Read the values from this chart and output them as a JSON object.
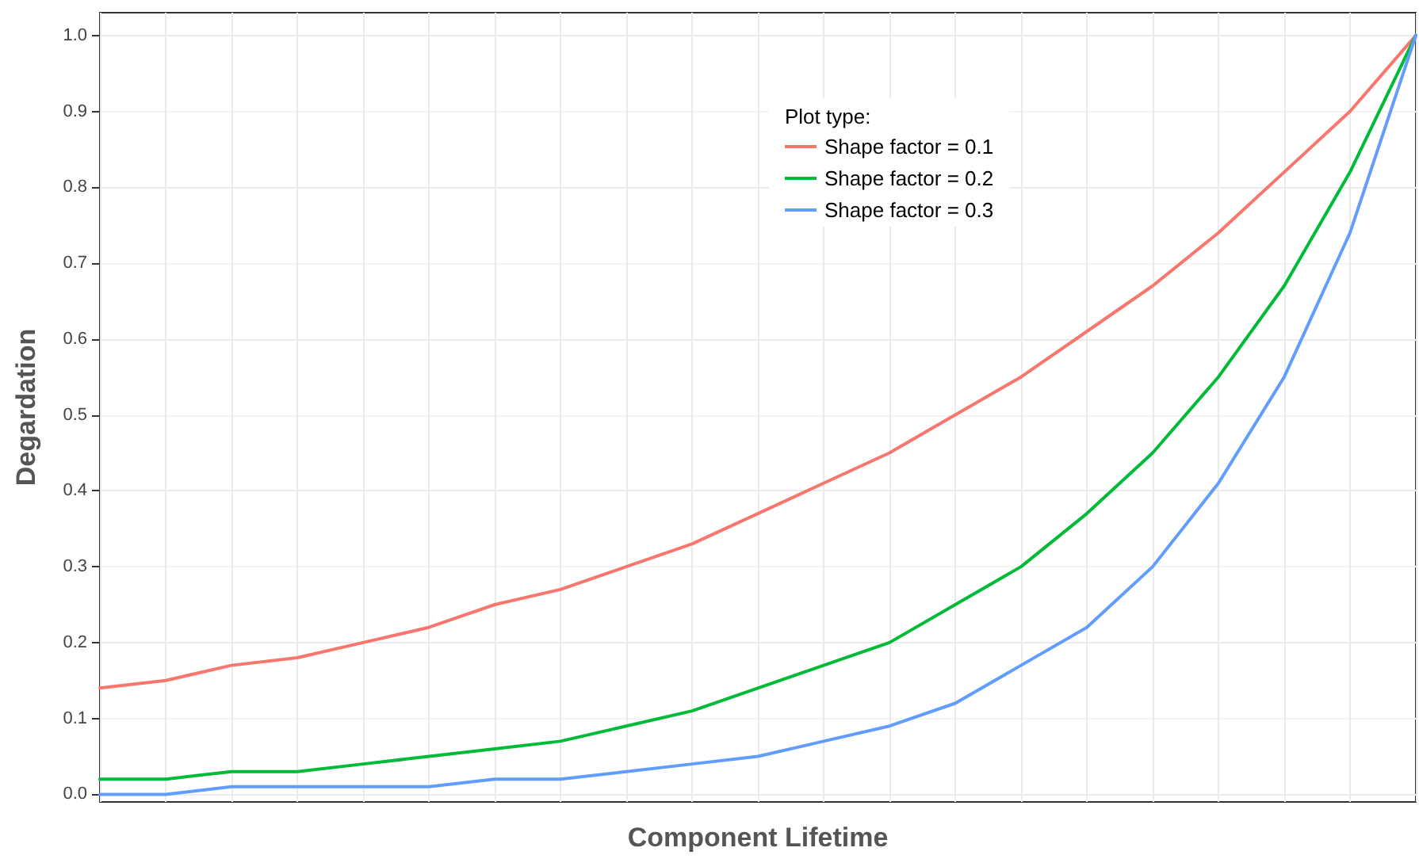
{
  "chart_data": {
    "type": "line",
    "xlabel": "Component Lifetime",
    "ylabel": "Degardation",
    "legend_title": "Plot type:",
    "categories": [
      null,
      null,
      null,
      null,
      null,
      null,
      null,
      null,
      null,
      null,
      null,
      null,
      null,
      null,
      null,
      null,
      null,
      null,
      null,
      null,
      null
    ],
    "series": [
      {
        "name": "Shape factor = 0.1",
        "color": "#f8766d",
        "values": [
          0.14,
          0.15,
          0.17,
          0.18,
          0.2,
          0.22,
          0.25,
          0.27,
          0.3,
          0.33,
          0.37,
          0.41,
          0.45,
          0.5,
          0.55,
          0.61,
          0.67,
          0.74,
          0.82,
          0.9,
          1.0
        ]
      },
      {
        "name": "Shape factor = 0.2",
        "color": "#00ba38",
        "values": [
          0.02,
          0.02,
          0.03,
          0.03,
          0.04,
          0.05,
          0.06,
          0.07,
          0.09,
          0.11,
          0.14,
          0.17,
          0.2,
          0.25,
          0.3,
          0.37,
          0.45,
          0.55,
          0.67,
          0.82,
          1.0
        ]
      },
      {
        "name": "Shape factor = 0.3",
        "color": "#619cff",
        "values": [
          0.0,
          0.0,
          0.01,
          0.01,
          0.01,
          0.01,
          0.02,
          0.02,
          0.03,
          0.04,
          0.05,
          0.07,
          0.09,
          0.12,
          0.17,
          0.22,
          0.3,
          0.41,
          0.55,
          0.74,
          1.0
        ]
      }
    ],
    "ylim": [
      -0.01,
      1.03
    ],
    "yticks": [
      {
        "value": 0,
        "label": "0.0"
      },
      0.1,
      0.2,
      0.3,
      0.4,
      0.5,
      0.6,
      0.7,
      0.8,
      0.9,
      {
        "value": 1,
        "label": "1.0"
      }
    ],
    "tick_labels": "y",
    "grid": true,
    "legend": "top",
    "marker": "none",
    "line_style": "solid"
  }
}
